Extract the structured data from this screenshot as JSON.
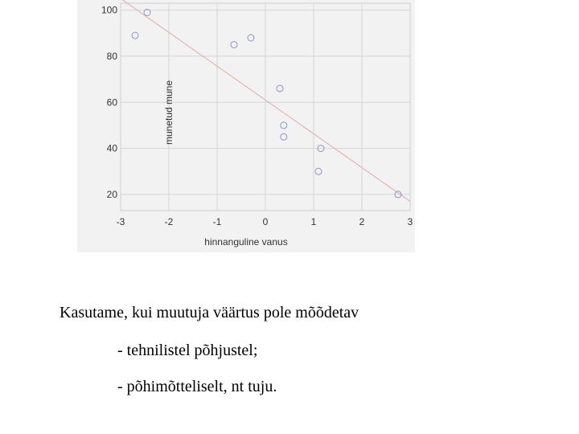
{
  "chart_data": {
    "type": "scatter",
    "xlabel": "hinnanguline vanus",
    "ylabel": "munetud mune",
    "xlim": [
      -3,
      3
    ],
    "ylim": [
      13,
      103
    ],
    "xticks": [
      -3,
      -2,
      -1,
      0,
      1,
      2,
      3
    ],
    "yticks": [
      20,
      40,
      60,
      80,
      100
    ],
    "grid": true,
    "points": [
      {
        "x": -2.7,
        "y": 89
      },
      {
        "x": -2.45,
        "y": 99
      },
      {
        "x": -0.65,
        "y": 85
      },
      {
        "x": -0.3,
        "y": 88
      },
      {
        "x": 0.3,
        "y": 66
      },
      {
        "x": 0.38,
        "y": 50
      },
      {
        "x": 0.38,
        "y": 45
      },
      {
        "x": 1.15,
        "y": 40
      },
      {
        "x": 1.1,
        "y": 30
      },
      {
        "x": 2.75,
        "y": 20
      }
    ],
    "fit_line": {
      "x": [
        -3,
        3
      ],
      "y": [
        105,
        17
      ]
    },
    "colors": {
      "point": "#8f8fd6",
      "fit_line": "#e8a8a8",
      "grid": "#d6d6d6",
      "background": "#f2f2f2"
    }
  },
  "text": {
    "line1": "Kasutame, kui muutuja väärtus pole mõõdetav",
    "line2": "- tehnilistel põhjustel;",
    "line3": "- põhimõtteliselt, nt tuju."
  }
}
